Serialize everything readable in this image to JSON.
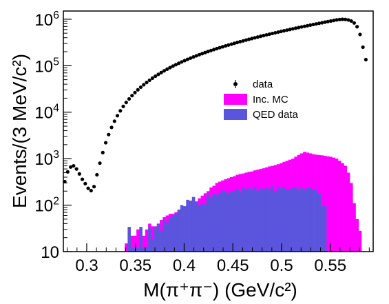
{
  "chart_data": {
    "type": "scatter",
    "title": "",
    "xlabel": "M(π⁺π⁻) (GeV/c²)",
    "ylabel": "Events/(3 MeV/c²)",
    "xlim": [
      0.276,
      0.594
    ],
    "ylim": [
      10,
      1500000
    ],
    "yscale": "log",
    "grid": false,
    "legend": {
      "placement": "top-right",
      "entries": [
        {
          "label": "data",
          "kind": "marker",
          "color": "#000000"
        },
        {
          "label": "Inc. MC",
          "kind": "fill",
          "color": "#ff00ff"
        },
        {
          "label": "QED data",
          "kind": "fill",
          "color": "#5b55dd"
        }
      ]
    },
    "x_ticks": [
      {
        "value": 0.3,
        "label": "0.3"
      },
      {
        "value": 0.35,
        "label": "0.35"
      },
      {
        "value": 0.4,
        "label": "0.4"
      },
      {
        "value": 0.45,
        "label": "0.45"
      },
      {
        "value": 0.5,
        "label": "0.5"
      },
      {
        "value": 0.55,
        "label": "0.55"
      }
    ],
    "y_ticks": [
      {
        "value": 10,
        "base": "10",
        "exp": ""
      },
      {
        "value": 100,
        "base": "10",
        "exp": "2"
      },
      {
        "value": 1000,
        "base": "10",
        "exp": "3"
      },
      {
        "value": 10000,
        "base": "10",
        "exp": "4"
      },
      {
        "value": 100000,
        "base": "10",
        "exp": "5"
      },
      {
        "value": 1000000,
        "base": "10",
        "exp": "6"
      }
    ],
    "series": [
      {
        "name": "data",
        "kind": "points",
        "color": "#000000",
        "x": [
          0.2775,
          0.2805,
          0.2835,
          0.2865,
          0.2895,
          0.2925,
          0.2955,
          0.2985,
          0.3015,
          0.3045,
          0.3075,
          0.3105,
          0.3135,
          0.3165,
          0.3195,
          0.3225,
          0.3255,
          0.3285,
          0.3315,
          0.3345,
          0.3375,
          0.3405,
          0.3435,
          0.3465,
          0.3495,
          0.3525,
          0.3555,
          0.3585,
          0.3615,
          0.3645,
          0.3675,
          0.3705,
          0.3735,
          0.3765,
          0.3795,
          0.3825,
          0.3855,
          0.3885,
          0.3915,
          0.3945,
          0.3975,
          0.4005,
          0.4035,
          0.4065,
          0.4095,
          0.4125,
          0.4155,
          0.4185,
          0.4215,
          0.4245,
          0.4275,
          0.4305,
          0.4335,
          0.4365,
          0.4395,
          0.4425,
          0.4455,
          0.4485,
          0.4515,
          0.4545,
          0.4575,
          0.4605,
          0.4635,
          0.4665,
          0.4695,
          0.4725,
          0.4755,
          0.4785,
          0.4815,
          0.4845,
          0.4875,
          0.4905,
          0.4935,
          0.4965,
          0.4995,
          0.5025,
          0.5055,
          0.5085,
          0.5115,
          0.5145,
          0.5175,
          0.5205,
          0.5235,
          0.5265,
          0.5295,
          0.5325,
          0.5355,
          0.5385,
          0.5415,
          0.5445,
          0.5475,
          0.5505,
          0.5535,
          0.5565,
          0.5595,
          0.5625,
          0.5655,
          0.5685,
          0.5715,
          0.5745,
          0.5775,
          0.5805,
          0.5835,
          0.5865
        ],
        "y": [
          320,
          520,
          660,
          700,
          600,
          470,
          360,
          290,
          230,
          205,
          250,
          450,
          800,
          1350,
          2200,
          3300,
          4700,
          6400,
          8400,
          10700,
          13300,
          16200,
          19300,
          22700,
          26400,
          30300,
          34500,
          38900,
          43600,
          48600,
          53900,
          59400,
          65200,
          71200,
          77500,
          84100,
          90900,
          98000,
          105300,
          112900,
          120700,
          128700,
          137000,
          145500,
          154300,
          163300,
          172500,
          181900,
          191600,
          201600,
          211800,
          222300,
          233000,
          244000,
          255200,
          266700,
          278500,
          290600,
          303000,
          315700,
          328700,
          342000,
          355700,
          369700,
          384000,
          398600,
          413600,
          428900,
          444600,
          460600,
          477000,
          493700,
          510800,
          528300,
          546100,
          564400,
          583000,
          602100,
          621500,
          641400,
          661700,
          682400,
          703500,
          725100,
          747100,
          769600,
          792500,
          815900,
          839700,
          864000,
          888800,
          914000,
          939700,
          965900,
          985000,
          995000,
          990000,
          965000,
          915000,
          830000,
          690000,
          470000,
          250000,
          135000
        ]
      },
      {
        "name": "Inc. MC",
        "kind": "histogram",
        "color": "#ff00ff",
        "x_start": 0.339,
        "bin_width": 0.003,
        "values": [
          15,
          15,
          22,
          22,
          30,
          22,
          22,
          30,
          40,
          35,
          35,
          40,
          48,
          55,
          60,
          65,
          65,
          70,
          75,
          80,
          90,
          100,
          100,
          120,
          120,
          140,
          160,
          180,
          200,
          240,
          260,
          300,
          320,
          340,
          360,
          380,
          400,
          420,
          450,
          470,
          480,
          500,
          520,
          530,
          560,
          580,
          600,
          620,
          650,
          680,
          700,
          730,
          760,
          800,
          850,
          900,
          950,
          1000,
          1100,
          1200,
          1300,
          1400,
          1350,
          1300,
          1250,
          1220,
          1200,
          1180,
          1150,
          1120,
          1100,
          1050,
          1000,
          900,
          800,
          700,
          500,
          300,
          110,
          50,
          28
        ]
      },
      {
        "name": "QED data",
        "kind": "histogram",
        "color": "#5b55dd",
        "x_start": 0.342,
        "bin_width": 0.003,
        "values": [
          34,
          12,
          12,
          12,
          34,
          12,
          12,
          34,
          18,
          34,
          40,
          28,
          50,
          42,
          55,
          60,
          65,
          80,
          100,
          95,
          130,
          125,
          150,
          120,
          100,
          110,
          105,
          170,
          145,
          175,
          160,
          185,
          210,
          195,
          180,
          200,
          205,
          225,
          190,
          240,
          220,
          230,
          210,
          250,
          205,
          235,
          225,
          240,
          225,
          260,
          200,
          250,
          230,
          245,
          215,
          225,
          235,
          245,
          210,
          235,
          215,
          230,
          240,
          220,
          220,
          180,
          95,
          95,
          10
        ]
      }
    ]
  }
}
